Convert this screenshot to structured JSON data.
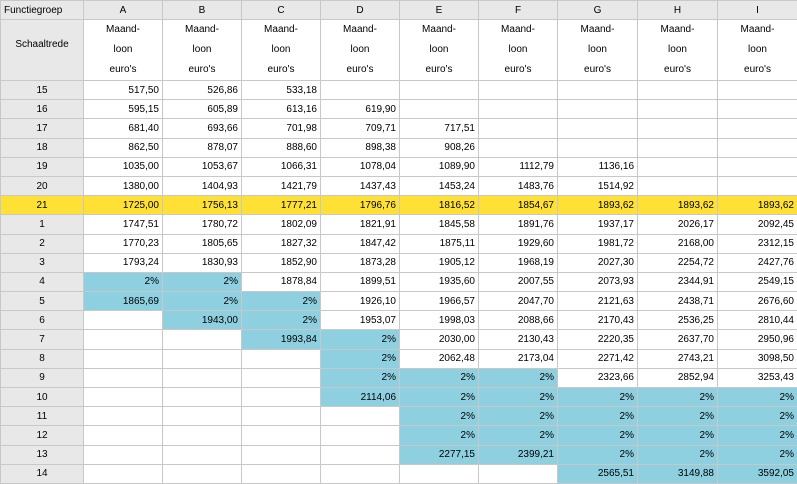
{
  "corner_label": "Functiegroep",
  "row_header_title": "Schaaltrede",
  "unit_label": [
    "Maand-",
    "loon",
    "euro's"
  ],
  "columns": [
    "A",
    "B",
    "C",
    "D",
    "E",
    "F",
    "G",
    "H",
    "I"
  ],
  "colors": {
    "highlight_row": "#ffe135",
    "cap_cell": "#8fd0e0",
    "header_bg": "#e8e8e8"
  },
  "rows": [
    {
      "label": "15",
      "values": [
        "517,50",
        "526,86",
        "533,18",
        "",
        "",
        "",
        "",
        "",
        ""
      ],
      "fill": [
        "",
        "",
        "",
        "",
        "",
        "",
        "",
        "",
        ""
      ]
    },
    {
      "label": "16",
      "values": [
        "595,15",
        "605,89",
        "613,16",
        "619,90",
        "",
        "",
        "",
        "",
        ""
      ],
      "fill": [
        "",
        "",
        "",
        "",
        "",
        "",
        "",
        "",
        ""
      ]
    },
    {
      "label": "17",
      "values": [
        "681,40",
        "693,66",
        "701,98",
        "709,71",
        "717,51",
        "",
        "",
        "",
        ""
      ],
      "fill": [
        "",
        "",
        "",
        "",
        "",
        "",
        "",
        "",
        ""
      ]
    },
    {
      "label": "18",
      "values": [
        "862,50",
        "878,07",
        "888,60",
        "898,38",
        "908,26",
        "",
        "",
        "",
        ""
      ],
      "fill": [
        "",
        "",
        "",
        "",
        "",
        "",
        "",
        "",
        ""
      ]
    },
    {
      "label": "19",
      "values": [
        "1035,00",
        "1053,67",
        "1066,31",
        "1078,04",
        "1089,90",
        "1112,79",
        "1136,16",
        "",
        ""
      ],
      "fill": [
        "",
        "",
        "",
        "",
        "",
        "",
        "",
        "",
        ""
      ]
    },
    {
      "label": "20",
      "values": [
        "1380,00",
        "1404,93",
        "1421,79",
        "1437,43",
        "1453,24",
        "1483,76",
        "1514,92",
        "",
        ""
      ],
      "fill": [
        "",
        "",
        "",
        "",
        "",
        "",
        "",
        "",
        ""
      ]
    },
    {
      "label": "21",
      "values": [
        "1725,00",
        "1756,13",
        "1777,21",
        "1796,76",
        "1816,52",
        "1854,67",
        "1893,62",
        "1893,62",
        "1893,62"
      ],
      "fill": [
        "yellow",
        "yellow",
        "yellow",
        "yellow",
        "yellow",
        "yellow",
        "yellow",
        "yellow",
        "yellow"
      ],
      "row_fill": "yellow"
    },
    {
      "label": "1",
      "values": [
        "1747,51",
        "1780,72",
        "1802,09",
        "1821,91",
        "1845,58",
        "1891,76",
        "1937,17",
        "2026,17",
        "2092,45"
      ],
      "fill": [
        "",
        "",
        "",
        "",
        "",
        "",
        "",
        "",
        ""
      ]
    },
    {
      "label": "2",
      "values": [
        "1770,23",
        "1805,65",
        "1827,32",
        "1847,42",
        "1875,11",
        "1929,60",
        "1981,72",
        "2168,00",
        "2312,15"
      ],
      "fill": [
        "",
        "",
        "",
        "",
        "",
        "",
        "",
        "",
        ""
      ]
    },
    {
      "label": "3",
      "values": [
        "1793,24",
        "1830,93",
        "1852,90",
        "1873,28",
        "1905,12",
        "1968,19",
        "2027,30",
        "2254,72",
        "2427,76"
      ],
      "fill": [
        "",
        "",
        "",
        "",
        "",
        "",
        "",
        "",
        ""
      ]
    },
    {
      "label": "4",
      "values": [
        "2%",
        "2%",
        "1878,84",
        "1899,51",
        "1935,60",
        "2007,55",
        "2073,93",
        "2344,91",
        "2549,15"
      ],
      "fill": [
        "blue",
        "blue",
        "",
        "",
        "",
        "",
        "",
        "",
        ""
      ]
    },
    {
      "label": "5",
      "values": [
        "1865,69",
        "2%",
        "2%",
        "1926,10",
        "1966,57",
        "2047,70",
        "2121,63",
        "2438,71",
        "2676,60"
      ],
      "fill": [
        "blue",
        "blue",
        "blue",
        "",
        "",
        "",
        "",
        "",
        ""
      ]
    },
    {
      "label": "6",
      "values": [
        "",
        "1943,00",
        "2%",
        "1953,07",
        "1998,03",
        "2088,66",
        "2170,43",
        "2536,25",
        "2810,44"
      ],
      "fill": [
        "",
        "blue",
        "blue",
        "",
        "",
        "",
        "",
        "",
        ""
      ]
    },
    {
      "label": "7",
      "values": [
        "",
        "",
        "1993,84",
        "2%",
        "2030,00",
        "2130,43",
        "2220,35",
        "2637,70",
        "2950,96"
      ],
      "fill": [
        "",
        "",
        "blue",
        "blue",
        "",
        "",
        "",
        "",
        ""
      ]
    },
    {
      "label": "8",
      "values": [
        "",
        "",
        "",
        "2%",
        "2062,48",
        "2173,04",
        "2271,42",
        "2743,21",
        "3098,50"
      ],
      "fill": [
        "",
        "",
        "",
        "blue",
        "",
        "",
        "",
        "",
        ""
      ]
    },
    {
      "label": "9",
      "values": [
        "",
        "",
        "",
        "2%",
        "2%",
        "2%",
        "2323,66",
        "2852,94",
        "3253,43"
      ],
      "fill": [
        "",
        "",
        "",
        "blue",
        "blue",
        "blue",
        "",
        "",
        ""
      ]
    },
    {
      "label": "10",
      "values": [
        "",
        "",
        "",
        "2114,06",
        "2%",
        "2%",
        "2%",
        "2%",
        "2%"
      ],
      "fill": [
        "",
        "",
        "",
        "blue",
        "blue",
        "blue",
        "blue",
        "blue",
        "blue"
      ]
    },
    {
      "label": "11",
      "values": [
        "",
        "",
        "",
        "",
        "2%",
        "2%",
        "2%",
        "2%",
        "2%"
      ],
      "fill": [
        "",
        "",
        "",
        "",
        "blue",
        "blue",
        "blue",
        "blue",
        "blue"
      ]
    },
    {
      "label": "12",
      "values": [
        "",
        "",
        "",
        "",
        "2%",
        "2%",
        "2%",
        "2%",
        "2%"
      ],
      "fill": [
        "",
        "",
        "",
        "",
        "blue",
        "blue",
        "blue",
        "blue",
        "blue"
      ]
    },
    {
      "label": "13",
      "values": [
        "",
        "",
        "",
        "",
        "2277,15",
        "2399,21",
        "2%",
        "2%",
        "2%"
      ],
      "fill": [
        "",
        "",
        "",
        "",
        "blue",
        "blue",
        "blue",
        "blue",
        "blue"
      ]
    },
    {
      "label": "14",
      "values": [
        "",
        "",
        "",
        "",
        "",
        "",
        "2565,51",
        "3149,88",
        "3592,05"
      ],
      "fill": [
        "",
        "",
        "",
        "",
        "",
        "",
        "blue",
        "blue",
        "blue"
      ]
    }
  ]
}
